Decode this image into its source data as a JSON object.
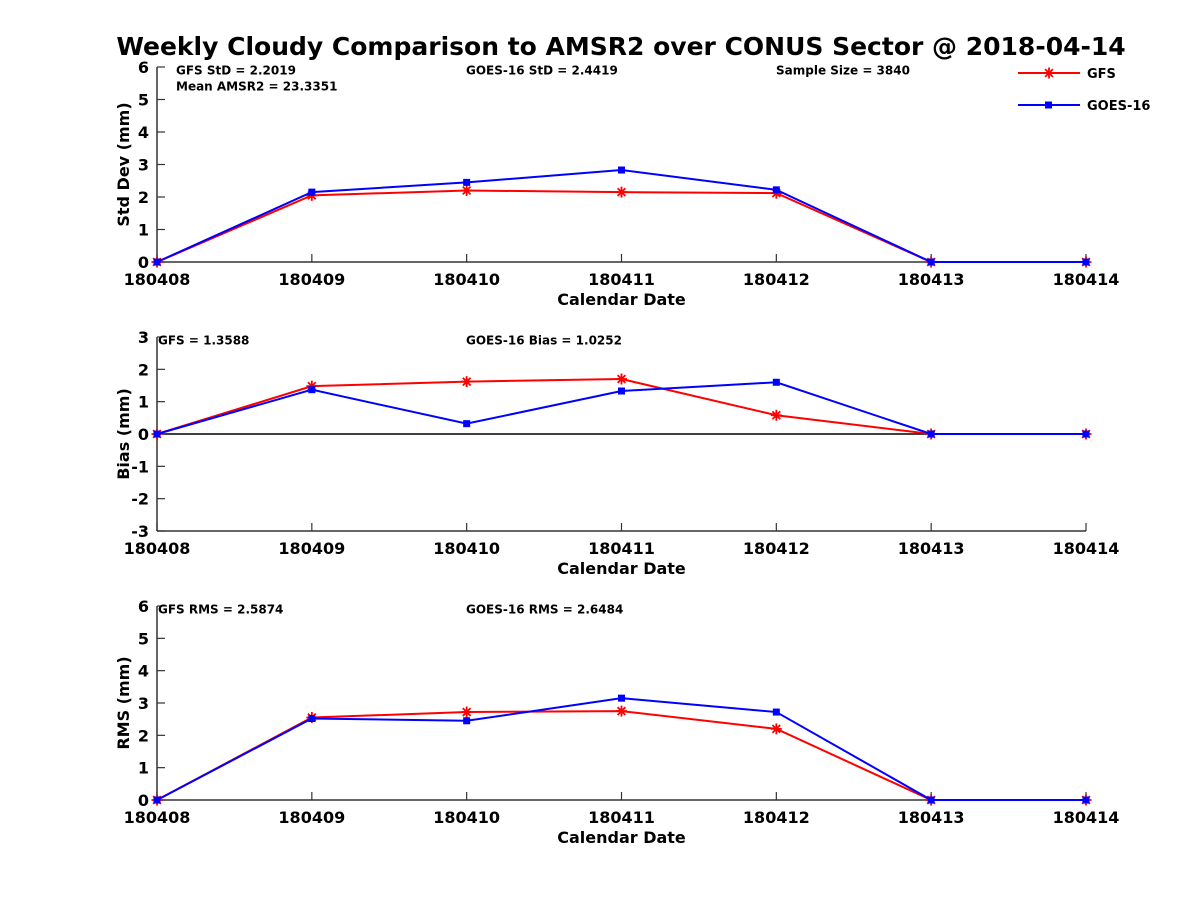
{
  "figure": {
    "title": "Weekly Cloudy Comparison to AMSR2 over CONUS Sector @ 2018-04-14"
  },
  "legend": {
    "placement": "top-right",
    "items": [
      {
        "name": "GFS",
        "color": "#ff0000",
        "marker": "asterisk"
      },
      {
        "name": "GOES-16",
        "color": "#0000ff",
        "marker": "square"
      }
    ]
  },
  "chart_data": [
    {
      "type": "line",
      "xlabel": "Calendar Date",
      "ylabel": "Std Dev (mm)",
      "categories": [
        "180408",
        "180409",
        "180410",
        "180411",
        "180412",
        "180413",
        "180414"
      ],
      "ylim": [
        0,
        6
      ],
      "yticks": [
        0,
        1,
        2,
        3,
        4,
        5,
        6
      ],
      "zero_line": false,
      "annotations": [
        "GFS StD = 2.2019",
        "Mean AMSR2 = 23.3351",
        "GOES-16 StD = 2.4419",
        "Sample Size = 3840"
      ],
      "series": [
        {
          "name": "GFS",
          "color": "#ff0000",
          "marker": "asterisk",
          "values": [
            0,
            2.05,
            2.2,
            2.15,
            2.12,
            0,
            0
          ]
        },
        {
          "name": "GOES-16",
          "color": "#0000ff",
          "marker": "square",
          "values": [
            0,
            2.15,
            2.45,
            2.83,
            2.22,
            0,
            0
          ]
        }
      ]
    },
    {
      "type": "line",
      "xlabel": "Calendar Date",
      "ylabel": "Bias (mm)",
      "categories": [
        "180408",
        "180409",
        "180410",
        "180411",
        "180412",
        "180413",
        "180414"
      ],
      "ylim": [
        -3,
        3
      ],
      "yticks": [
        -3,
        -2,
        -1,
        0,
        1,
        2,
        3
      ],
      "zero_line": true,
      "annotations": [
        "GFS = 1.3588",
        "GOES-16 Bias  = 1.0252"
      ],
      "series": [
        {
          "name": "GFS",
          "color": "#ff0000",
          "marker": "asterisk",
          "values": [
            0,
            1.48,
            1.62,
            1.7,
            0.58,
            0,
            0
          ]
        },
        {
          "name": "GOES-16",
          "color": "#0000ff",
          "marker": "square",
          "values": [
            0,
            1.37,
            0.32,
            1.33,
            1.6,
            0,
            0
          ]
        }
      ]
    },
    {
      "type": "line",
      "xlabel": "Calendar Date",
      "ylabel": "RMS (mm)",
      "categories": [
        "180408",
        "180409",
        "180410",
        "180411",
        "180412",
        "180413",
        "180414"
      ],
      "ylim": [
        0,
        6
      ],
      "yticks": [
        0,
        1,
        2,
        3,
        4,
        5,
        6
      ],
      "zero_line": false,
      "annotations": [
        "GFS RMS = 2.5874",
        "GOES-16 RMS = 2.6484"
      ],
      "series": [
        {
          "name": "GFS",
          "color": "#ff0000",
          "marker": "asterisk",
          "values": [
            0,
            2.55,
            2.72,
            2.75,
            2.2,
            0,
            0
          ]
        },
        {
          "name": "GOES-16",
          "color": "#0000ff",
          "marker": "square",
          "values": [
            0,
            2.52,
            2.45,
            3.15,
            2.72,
            0,
            0
          ]
        }
      ]
    }
  ]
}
